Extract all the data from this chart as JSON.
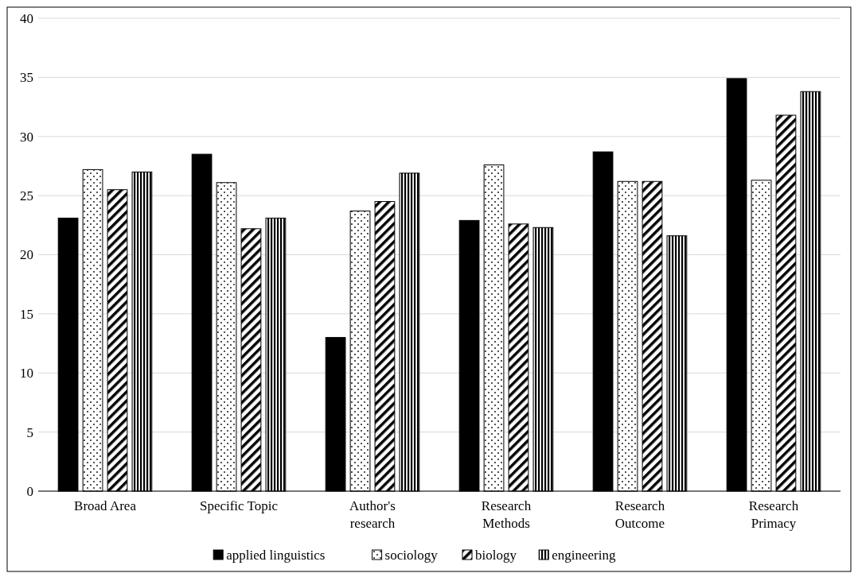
{
  "chart_data": {
    "type": "bar",
    "categories": [
      "Broad Area",
      "Specific Topic",
      "Author's research",
      "Research Methods",
      "Research Outcome",
      "Research Primacy"
    ],
    "series": [
      {
        "name": "applied linguistics",
        "color": "#000000",
        "values": [
          23.1,
          28.5,
          13.0,
          22.9,
          28.7,
          34.9
        ]
      },
      {
        "name": "sociology",
        "color": "#000000",
        "values": [
          27.2,
          26.1,
          23.7,
          27.6,
          26.2,
          26.3
        ]
      },
      {
        "name": "biology",
        "color": "#000000",
        "values": [
          25.5,
          22.2,
          24.5,
          22.6,
          26.2,
          31.8
        ]
      },
      {
        "name": "engineering",
        "color": "#000000",
        "values": [
          27.0,
          23.1,
          26.9,
          22.3,
          21.6,
          33.8
        ]
      }
    ],
    "ylim": [
      0,
      40
    ],
    "yticks": [
      0,
      5,
      10,
      15,
      20,
      25,
      30,
      35,
      40
    ],
    "grid": "y",
    "legend": "bottom"
  }
}
